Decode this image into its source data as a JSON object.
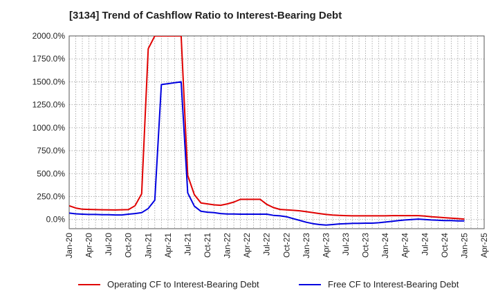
{
  "chart_data": {
    "type": "line",
    "title": "[3134]  Trend of Cashflow Ratio to Interest-Bearing Debt",
    "xlabel": "",
    "ylabel": "",
    "ylim": [
      -100,
      2000
    ],
    "yticks": [
      0,
      250,
      500,
      750,
      1000,
      1250,
      1500,
      1750,
      2000
    ],
    "ytick_labels": [
      "0.0%",
      "250.0%",
      "500.0%",
      "750.0%",
      "1000.0%",
      "1250.0%",
      "1500.0%",
      "1750.0%",
      "2000.0%"
    ],
    "x_tick_labels": [
      "Jan-20",
      "Apr-20",
      "Jul-20",
      "Oct-20",
      "Jan-21",
      "Apr-21",
      "Jul-21",
      "Oct-21",
      "Jan-22",
      "Apr-22",
      "Jul-22",
      "Oct-22",
      "Jan-23",
      "Apr-23",
      "Jul-23",
      "Oct-23",
      "Jan-24",
      "Apr-24",
      "Jul-24",
      "Oct-24",
      "Jan-25",
      "Apr-25"
    ],
    "grid": true,
    "legend_position": "bottom",
    "series": [
      {
        "name": "Operating CF to Interest-Bearing Debt",
        "color": "#e00000",
        "values": [
          150,
          125,
          112,
          110,
          108,
          106,
          105,
          104,
          106,
          108,
          150,
          280,
          1860,
          2000,
          2000,
          2000,
          2000,
          2000,
          480,
          270,
          180,
          170,
          160,
          155,
          170,
          190,
          220,
          220,
          220,
          220,
          165,
          130,
          110,
          105,
          100,
          95,
          85,
          75,
          65,
          55,
          48,
          45,
          42,
          40,
          40,
          40,
          40,
          40,
          40,
          42,
          42,
          42,
          42,
          42,
          38,
          30,
          25,
          20,
          15,
          10,
          5
        ]
      },
      {
        "name": "Free CF to Interest-Bearing Debt",
        "color": "#0000e0",
        "values": [
          70,
          62,
          58,
          55,
          55,
          53,
          52,
          50,
          50,
          58,
          65,
          75,
          120,
          210,
          1470,
          1480,
          1490,
          1500,
          290,
          145,
          90,
          80,
          75,
          65,
          60,
          60,
          58,
          58,
          58,
          58,
          58,
          45,
          40,
          30,
          10,
          -10,
          -30,
          -45,
          -55,
          -60,
          -55,
          -48,
          -45,
          -42,
          -42,
          -40,
          -40,
          -35,
          -28,
          -20,
          -12,
          -5,
          0,
          5,
          0,
          -5,
          -8,
          -12,
          -12,
          -15,
          -15
        ]
      }
    ]
  }
}
